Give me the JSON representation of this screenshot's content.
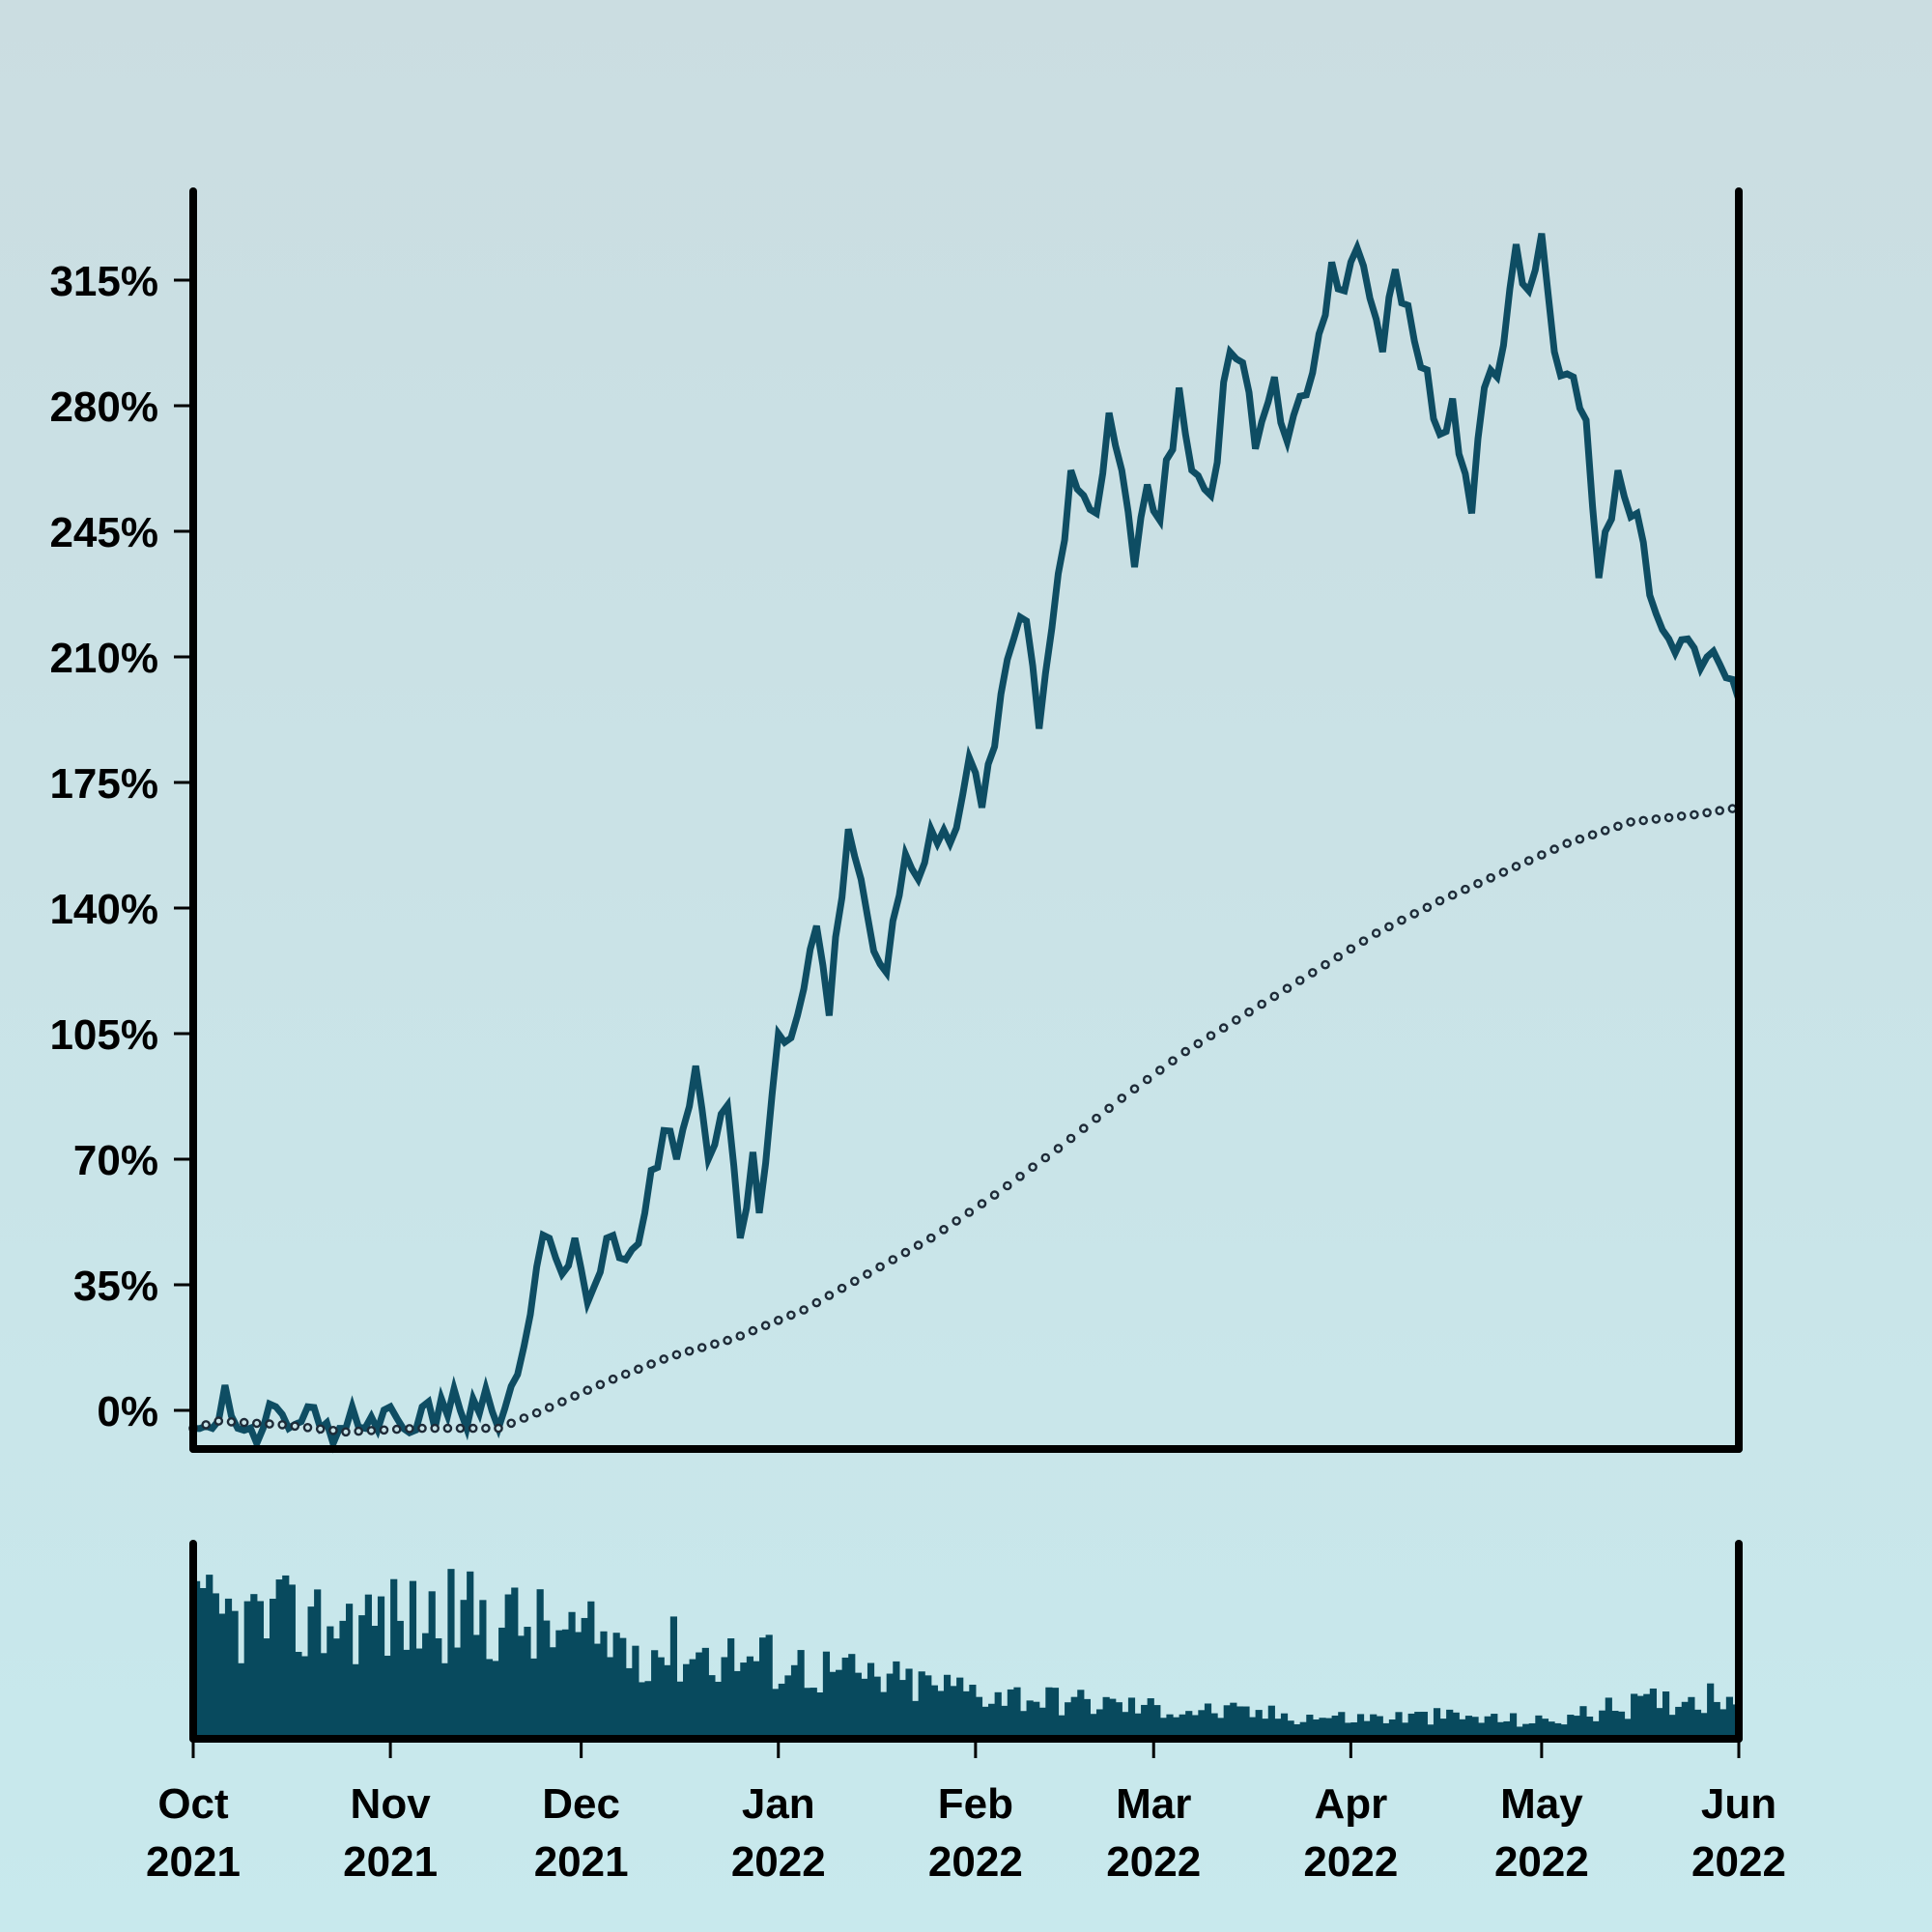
{
  "chart_data": [
    {
      "type": "line",
      "title": "",
      "xlabel": "",
      "ylabel": "",
      "y_tick_labels": [
        "0%",
        "35%",
        "70%",
        "105%",
        "140%",
        "175%",
        "210%",
        "245%",
        "280%",
        "315%"
      ],
      "y_tick_values": [
        0,
        35,
        70,
        105,
        140,
        175,
        210,
        245,
        280,
        315
      ],
      "ylim": [
        -8,
        340
      ],
      "x_range": [
        "2021-10-01",
        "2022-06-01"
      ],
      "grid": false,
      "series": [
        {
          "style": "solid",
          "color": "#0e4d63",
          "points": [
            [
              "2021-10-01",
              -5
            ],
            [
              "2021-10-04",
              -5
            ],
            [
              "2021-10-06",
              7
            ],
            [
              "2021-10-08",
              -5
            ],
            [
              "2021-10-12",
              -5
            ],
            [
              "2021-10-14",
              1
            ],
            [
              "2021-10-16",
              -5
            ],
            [
              "2021-10-19",
              1
            ],
            [
              "2021-10-21",
              -5
            ],
            [
              "2021-10-25",
              -5
            ],
            [
              "2021-10-26",
              1
            ],
            [
              "2021-10-28",
              -5
            ],
            [
              "2021-11-01",
              1
            ],
            [
              "2021-11-03",
              -5
            ],
            [
              "2021-11-06",
              1
            ],
            [
              "2021-11-08",
              -5
            ],
            [
              "2021-11-11",
              6
            ],
            [
              "2021-11-13",
              -5
            ],
            [
              "2021-11-16",
              6
            ],
            [
              "2021-11-18",
              -5
            ],
            [
              "2021-11-21",
              10
            ],
            [
              "2021-11-24",
              40
            ],
            [
              "2021-11-26",
              48
            ],
            [
              "2021-11-28",
              38
            ],
            [
              "2021-11-30",
              48
            ],
            [
              "2021-12-02",
              30
            ],
            [
              "2021-12-05",
              48
            ],
            [
              "2021-12-08",
              42
            ],
            [
              "2021-12-11",
              55
            ],
            [
              "2021-12-14",
              78
            ],
            [
              "2021-12-16",
              70
            ],
            [
              "2021-12-19",
              96
            ],
            [
              "2021-12-21",
              70
            ],
            [
              "2021-12-24",
              85
            ],
            [
              "2021-12-26",
              48
            ],
            [
              "2021-12-28",
              72
            ],
            [
              "2021-12-29",
              55
            ],
            [
              "2022-01-01",
              105
            ],
            [
              "2022-01-04",
              110
            ],
            [
              "2022-01-07",
              135
            ],
            [
              "2022-01-09",
              110
            ],
            [
              "2022-01-12",
              162
            ],
            [
              "2022-01-14",
              148
            ],
            [
              "2022-01-16",
              128
            ],
            [
              "2022-01-18",
              122
            ],
            [
              "2022-01-21",
              155
            ],
            [
              "2022-01-23",
              148
            ],
            [
              "2022-01-25",
              162
            ],
            [
              "2022-01-28",
              158
            ],
            [
              "2022-01-31",
              182
            ],
            [
              "2022-02-02",
              168
            ],
            [
              "2022-02-04",
              185
            ],
            [
              "2022-02-07",
              215
            ],
            [
              "2022-02-09",
              220
            ],
            [
              "2022-02-11",
              190
            ],
            [
              "2022-02-13",
              218
            ],
            [
              "2022-02-16",
              262
            ],
            [
              "2022-02-18",
              255
            ],
            [
              "2022-02-20",
              250
            ],
            [
              "2022-02-22",
              278
            ],
            [
              "2022-02-24",
              262
            ],
            [
              "2022-02-26",
              235
            ],
            [
              "2022-02-28",
              258
            ],
            [
              "2022-03-02",
              248
            ],
            [
              "2022-03-05",
              285
            ],
            [
              "2022-03-07",
              262
            ],
            [
              "2022-03-10",
              255
            ],
            [
              "2022-03-13",
              295
            ],
            [
              "2022-03-15",
              292
            ],
            [
              "2022-03-17",
              268
            ],
            [
              "2022-03-20",
              288
            ],
            [
              "2022-03-22",
              270
            ],
            [
              "2022-03-25",
              283
            ],
            [
              "2022-03-27",
              300
            ],
            [
              "2022-03-29",
              320
            ],
            [
              "2022-03-31",
              312
            ],
            [
              "2022-04-02",
              324
            ],
            [
              "2022-04-04",
              310
            ],
            [
              "2022-04-06",
              295
            ],
            [
              "2022-04-08",
              318
            ],
            [
              "2022-04-11",
              298
            ],
            [
              "2022-04-13",
              290
            ],
            [
              "2022-04-15",
              272
            ],
            [
              "2022-04-17",
              282
            ],
            [
              "2022-04-20",
              250
            ],
            [
              "2022-04-22",
              285
            ],
            [
              "2022-04-24",
              288
            ],
            [
              "2022-04-27",
              325
            ],
            [
              "2022-04-29",
              312
            ],
            [
              "2022-05-01",
              328
            ],
            [
              "2022-05-03",
              295
            ],
            [
              "2022-05-06",
              288
            ],
            [
              "2022-05-08",
              276
            ],
            [
              "2022-05-10",
              232
            ],
            [
              "2022-05-13",
              262
            ],
            [
              "2022-05-16",
              250
            ],
            [
              "2022-05-19",
              222
            ],
            [
              "2022-05-21",
              215
            ],
            [
              "2022-05-24",
              215
            ],
            [
              "2022-05-27",
              210
            ],
            [
              "2022-05-29",
              208
            ],
            [
              "2022-06-01",
              198
            ]
          ]
        },
        {
          "style": "dotted",
          "color": "#1e2b38",
          "points": [
            [
              "2021-10-01",
              -5
            ],
            [
              "2021-10-05",
              -3
            ],
            [
              "2021-10-15",
              -4
            ],
            [
              "2021-10-25",
              -6
            ],
            [
              "2021-11-05",
              -5
            ],
            [
              "2021-11-18",
              -5
            ],
            [
              "2021-11-25",
              0
            ],
            [
              "2021-12-05",
              8
            ],
            [
              "2021-12-15",
              15
            ],
            [
              "2021-12-25",
              20
            ],
            [
              "2022-01-05",
              28
            ],
            [
              "2022-01-15",
              38
            ],
            [
              "2022-01-25",
              48
            ],
            [
              "2022-02-04",
              60
            ],
            [
              "2022-02-14",
              73
            ],
            [
              "2022-02-24",
              87
            ],
            [
              "2022-03-06",
              100
            ],
            [
              "2022-03-16",
              111
            ],
            [
              "2022-03-26",
              122
            ],
            [
              "2022-04-05",
              133
            ],
            [
              "2022-04-15",
              142
            ],
            [
              "2022-04-25",
              150
            ],
            [
              "2022-05-05",
              158
            ],
            [
              "2022-05-15",
              164
            ],
            [
              "2022-05-25",
              166
            ],
            [
              "2022-06-01",
              168
            ]
          ]
        }
      ]
    },
    {
      "type": "bar",
      "title": "",
      "x_range": [
        "2021-10-01",
        "2022-06-01"
      ],
      "color": "#084a5e",
      "ylim": [
        0,
        1
      ],
      "x_tick_labels": [
        {
          "month": "Oct",
          "year": "2021",
          "date": "2021-10-01"
        },
        {
          "month": "Nov",
          "year": "2021",
          "date": "2021-11-01"
        },
        {
          "month": "Dec",
          "year": "2021",
          "date": "2021-12-01"
        },
        {
          "month": "Jan",
          "year": "2022",
          "date": "2022-01-01"
        },
        {
          "month": "Feb",
          "year": "2022",
          "date": "2022-02-01"
        },
        {
          "month": "Mar",
          "year": "2022",
          "date": "2022-03-01"
        },
        {
          "month": "Apr",
          "year": "2022",
          "date": "2022-04-01"
        },
        {
          "month": "May",
          "year": "2022",
          "date": "2022-05-01"
        },
        {
          "month": "Jun",
          "year": "2022",
          "date": "2022-06-01"
        }
      ],
      "volume_envelope": [
        [
          "2021-10-01",
          0.7
        ],
        [
          "2021-10-15",
          0.68
        ],
        [
          "2021-11-01",
          0.7
        ],
        [
          "2021-11-15",
          0.72
        ],
        [
          "2021-12-01",
          0.58
        ],
        [
          "2021-12-15",
          0.52
        ],
        [
          "2022-01-01",
          0.45
        ],
        [
          "2022-01-15",
          0.35
        ],
        [
          "2022-02-01",
          0.28
        ],
        [
          "2022-02-15",
          0.22
        ],
        [
          "2022-03-01",
          0.18
        ],
        [
          "2022-03-15",
          0.15
        ],
        [
          "2022-04-01",
          0.12
        ],
        [
          "2022-04-15",
          0.13
        ],
        [
          "2022-05-01",
          0.1
        ],
        [
          "2022-05-15",
          0.2
        ],
        [
          "2022-06-01",
          0.28
        ]
      ]
    }
  ]
}
